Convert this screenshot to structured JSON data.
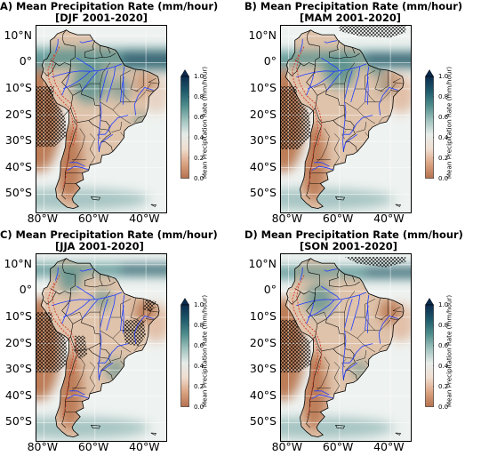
{
  "panels": [
    {
      "line1": "A) Mean Precipitation Rate (mm/hour)",
      "line2": "[DJF 2001-2020]",
      "season": "DJF"
    },
    {
      "line1": "B) Mean Precipitation Rate (mm/hour)",
      "line2": "[MAM 2001-2020]",
      "season": "MAM"
    },
    {
      "line1": "C) Mean Precipitation Rate (mm/hour)",
      "line2": "[JJA 2001-2020]",
      "season": "JJA"
    },
    {
      "line1": "D) Mean Precipitation Rate (mm/hour)",
      "line2": "[SON 2001-2020]",
      "season": "SON"
    }
  ],
  "lat_ticks": [
    "10°N",
    "0°",
    "10°S",
    "20°S",
    "30°S",
    "40°S",
    "50°S"
  ],
  "lon_ticks": [
    "80°W",
    "60°W",
    "40°W"
  ],
  "colorbar": {
    "label": "Mean Precipitation Rate (mm/hour)",
    "ticks": [
      "1.0",
      "0.8",
      "0.6",
      "0.4",
      "0.2",
      "0.0"
    ],
    "min": 0.0,
    "max": 1.0,
    "extend": "max",
    "colors": [
      "#b5714e",
      "#dba482",
      "#f0ddd0",
      "#e6ece9",
      "#9ec2bd",
      "#4e8d8c",
      "#1e5a6b",
      "#0b2b4e"
    ]
  },
  "map_extent": {
    "lon_min": -83,
    "lon_max": -32,
    "lat_min": -57,
    "lat_max": 14
  },
  "overlays": {
    "rivers_color": "#1f3cff",
    "borders_color": "#000000",
    "andes_contour_color": "#d23c2a",
    "hatching": "significance"
  }
}
